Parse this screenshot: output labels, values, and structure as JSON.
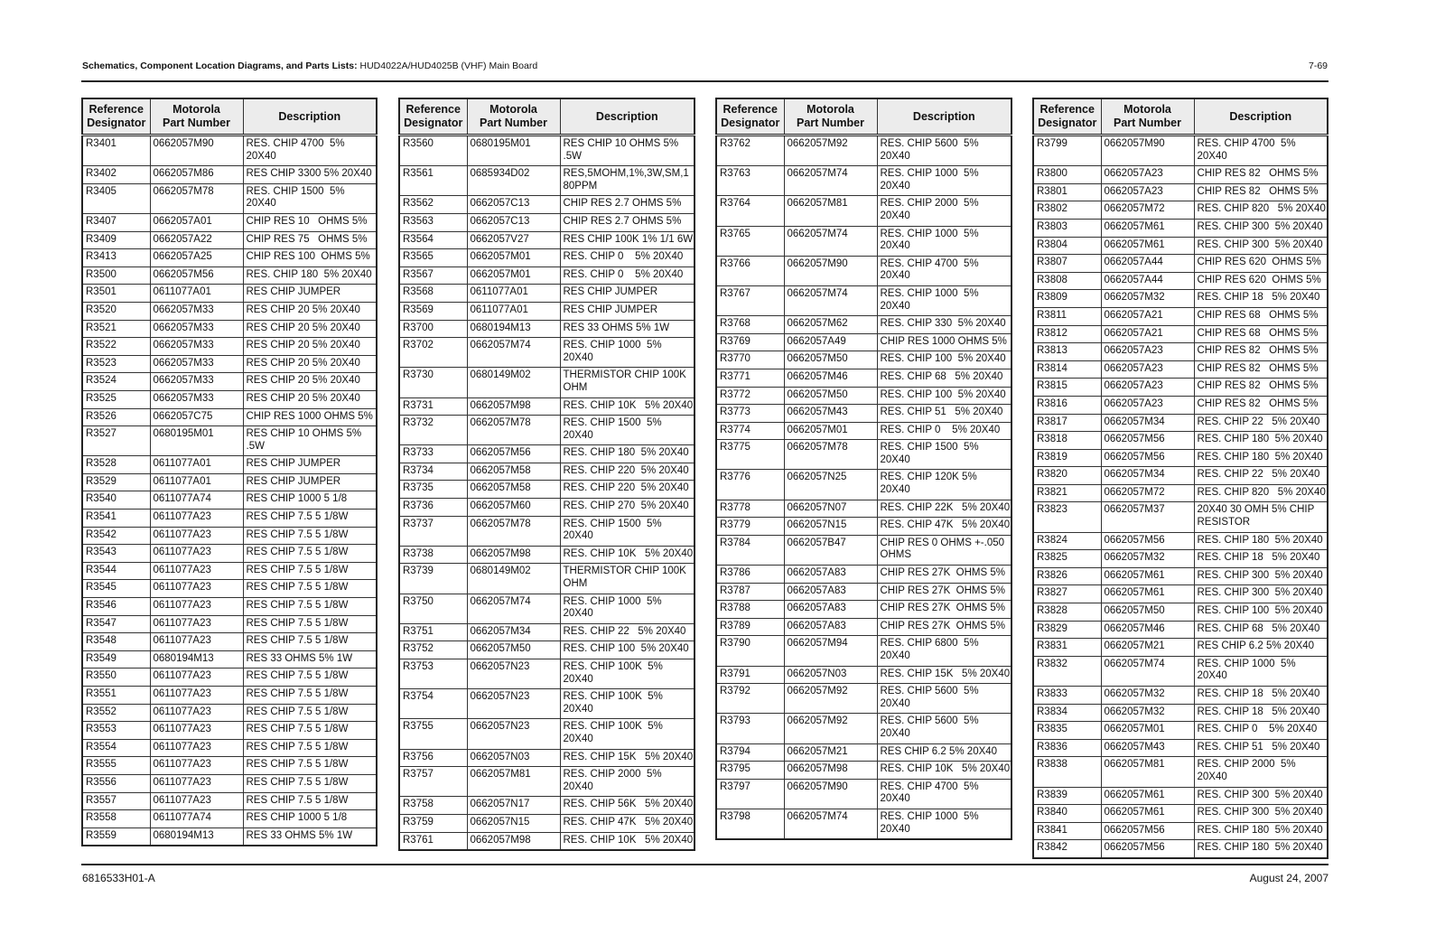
{
  "header": {
    "title_bold": "Schematics, Component Location Diagrams, and Parts Lists:",
    "title_rest": " HUD4022A/HUD4025B (VHF) Main Board",
    "page_number": "7-69"
  },
  "footer": {
    "doc_number": "6816533H01-A",
    "date": "August 24, 2007"
  },
  "columns": {
    "ref": "Reference\nDesignator",
    "part": "Motorola\nPart Number",
    "desc": "Description"
  },
  "tables": [
    {
      "rows": [
        {
          "ref": "R3401",
          "part": "0662057M90",
          "desc": "RES. CHIP 4700  5%\n20X40"
        },
        {
          "ref": "R3402",
          "part": "0662057M86",
          "desc": "RES CHIP 3300 5% 20X40"
        },
        {
          "ref": "R3405",
          "part": "0662057M78",
          "desc": "RES. CHIP 1500  5%\n20X40"
        },
        {
          "ref": "R3407",
          "part": "0662057A01",
          "desc": "CHIP RES 10   OHMS 5%"
        },
        {
          "ref": "R3409",
          "part": "0662057A22",
          "desc": "CHIP RES 75   OHMS 5%"
        },
        {
          "ref": "R3413",
          "part": "0662057A25",
          "desc": "CHIP RES 100  OHMS 5%"
        },
        {
          "ref": "R3500",
          "part": "0662057M56",
          "desc": "RES. CHIP 180  5% 20X40"
        },
        {
          "ref": "R3501",
          "part": "0611077A01",
          "desc": "RES CHIP JUMPER"
        },
        {
          "ref": "R3520",
          "part": "0662057M33",
          "desc": "RES CHIP 20 5% 20X40"
        },
        {
          "ref": "R3521",
          "part": "0662057M33",
          "desc": "RES CHIP 20 5% 20X40"
        },
        {
          "ref": "R3522",
          "part": "0662057M33",
          "desc": "RES CHIP 20 5% 20X40"
        },
        {
          "ref": "R3523",
          "part": "0662057M33",
          "desc": "RES CHIP 20 5% 20X40"
        },
        {
          "ref": "R3524",
          "part": "0662057M33",
          "desc": "RES CHIP 20 5% 20X40"
        },
        {
          "ref": "R3525",
          "part": "0662057M33",
          "desc": "RES CHIP 20 5% 20X40"
        },
        {
          "ref": "R3526",
          "part": "0662057C75",
          "desc": "CHIP RES 1000 OHMS 5%"
        },
        {
          "ref": "R3527",
          "part": "0680195M01",
          "desc": "RES CHIP 10 OHMS 5%\n.5W"
        },
        {
          "ref": "R3528",
          "part": "0611077A01",
          "desc": "RES CHIP JUMPER"
        },
        {
          "ref": "R3529",
          "part": "0611077A01",
          "desc": "RES CHIP JUMPER"
        },
        {
          "ref": "R3540",
          "part": "0611077A74",
          "desc": "RES CHIP 1000 5 1/8"
        },
        {
          "ref": "R3541",
          "part": "0611077A23",
          "desc": "RES CHIP 7.5 5 1/8W"
        },
        {
          "ref": "R3542",
          "part": "0611077A23",
          "desc": "RES CHIP 7.5 5 1/8W"
        },
        {
          "ref": "R3543",
          "part": "0611077A23",
          "desc": "RES CHIP 7.5 5 1/8W"
        },
        {
          "ref": "R3544",
          "part": "0611077A23",
          "desc": "RES CHIP 7.5 5 1/8W"
        },
        {
          "ref": "R3545",
          "part": "0611077A23",
          "desc": "RES CHIP 7.5 5 1/8W"
        },
        {
          "ref": "R3546",
          "part": "0611077A23",
          "desc": "RES CHIP 7.5 5 1/8W"
        },
        {
          "ref": "R3547",
          "part": "0611077A23",
          "desc": "RES CHIP 7.5 5 1/8W"
        },
        {
          "ref": "R3548",
          "part": "0611077A23",
          "desc": "RES CHIP 7.5 5 1/8W"
        },
        {
          "ref": "R3549",
          "part": "0680194M13",
          "desc": "RES 33 OHMS 5% 1W"
        },
        {
          "ref": "R3550",
          "part": "0611077A23",
          "desc": "RES CHIP 7.5 5 1/8W"
        },
        {
          "ref": "R3551",
          "part": "0611077A23",
          "desc": "RES CHIP 7.5 5 1/8W"
        },
        {
          "ref": "R3552",
          "part": "0611077A23",
          "desc": "RES CHIP 7.5 5 1/8W"
        },
        {
          "ref": "R3553",
          "part": "0611077A23",
          "desc": "RES CHIP 7.5 5 1/8W"
        },
        {
          "ref": "R3554",
          "part": "0611077A23",
          "desc": "RES CHIP 7.5 5 1/8W"
        },
        {
          "ref": "R3555",
          "part": "0611077A23",
          "desc": "RES CHIP 7.5 5 1/8W"
        },
        {
          "ref": "R3556",
          "part": "0611077A23",
          "desc": "RES CHIP 7.5 5 1/8W"
        },
        {
          "ref": "R3557",
          "part": "0611077A23",
          "desc": "RES CHIP 7.5 5 1/8W"
        },
        {
          "ref": "R3558",
          "part": "0611077A74",
          "desc": "RES CHIP 1000 5 1/8"
        },
        {
          "ref": "R3559",
          "part": "0680194M13",
          "desc": "RES 33 OHMS 5% 1W"
        }
      ]
    },
    {
      "rows": [
        {
          "ref": "R3560",
          "part": "0680195M01",
          "desc": "RES CHIP 10 OHMS 5%\n.5W"
        },
        {
          "ref": "R3561",
          "part": "0685934D02",
          "desc": "RES,5MOHM,1%,3W,SM,1\n80PPM"
        },
        {
          "ref": "R3562",
          "part": "0662057C13",
          "desc": "CHIP RES 2.7 OHMS 5%"
        },
        {
          "ref": "R3563",
          "part": "0662057C13",
          "desc": "CHIP RES 2.7 OHMS 5%"
        },
        {
          "ref": "R3564",
          "part": "0662057V27",
          "desc": "RES CHIP 100K 1% 1/1 6W"
        },
        {
          "ref": "R3565",
          "part": "0662057M01",
          "desc": "RES. CHIP 0    5% 20X40"
        },
        {
          "ref": "R3567",
          "part": "0662057M01",
          "desc": "RES. CHIP 0    5% 20X40"
        },
        {
          "ref": "R3568",
          "part": "0611077A01",
          "desc": "RES CHIP JUMPER"
        },
        {
          "ref": "R3569",
          "part": "0611077A01",
          "desc": "RES CHIP JUMPER"
        },
        {
          "ref": "R3700",
          "part": "0680194M13",
          "desc": "RES 33 OHMS 5% 1W"
        },
        {
          "ref": "R3702",
          "part": "0662057M74",
          "desc": "RES. CHIP 1000  5%\n20X40"
        },
        {
          "ref": "R3730",
          "part": "0680149M02",
          "desc": "THERMISTOR CHIP 100K\nOHM"
        },
        {
          "ref": "R3731",
          "part": "0662057M98",
          "desc": "RES. CHIP 10K   5% 20X40"
        },
        {
          "ref": "R3732",
          "part": "0662057M78",
          "desc": "RES. CHIP 1500  5%\n20X40"
        },
        {
          "ref": "R3733",
          "part": "0662057M56",
          "desc": "RES. CHIP 180  5% 20X40"
        },
        {
          "ref": "R3734",
          "part": "0662057M58",
          "desc": "RES. CHIP 220  5% 20X40"
        },
        {
          "ref": "R3735",
          "part": "0662057M58",
          "desc": "RES. CHIP 220  5% 20X40"
        },
        {
          "ref": "R3736",
          "part": "0662057M60",
          "desc": "RES. CHIP 270  5% 20X40"
        },
        {
          "ref": "R3737",
          "part": "0662057M78",
          "desc": "RES. CHIP 1500  5%\n20X40"
        },
        {
          "ref": "R3738",
          "part": "0662057M98",
          "desc": "RES. CHIP 10K   5% 20X40"
        },
        {
          "ref": "R3739",
          "part": "0680149M02",
          "desc": "THERMISTOR CHIP 100K\nOHM"
        },
        {
          "ref": "R3750",
          "part": "0662057M74",
          "desc": "RES. CHIP 1000  5%\n20X40"
        },
        {
          "ref": "R3751",
          "part": "0662057M34",
          "desc": "RES. CHIP 22   5% 20X40"
        },
        {
          "ref": "R3752",
          "part": "0662057M50",
          "desc": "RES. CHIP 100  5% 20X40"
        },
        {
          "ref": "R3753",
          "part": "0662057N23",
          "desc": "RES. CHIP 100K  5%\n20X40"
        },
        {
          "ref": "R3754",
          "part": "0662057N23",
          "desc": "RES. CHIP 100K  5%\n20X40"
        },
        {
          "ref": "R3755",
          "part": "0662057N23",
          "desc": "RES. CHIP 100K  5%\n20X40"
        },
        {
          "ref": "R3756",
          "part": "0662057N03",
          "desc": "RES. CHIP 15K   5% 20X40"
        },
        {
          "ref": "R3757",
          "part": "0662057M81",
          "desc": "RES. CHIP 2000  5%\n20X40"
        },
        {
          "ref": "R3758",
          "part": "0662057N17",
          "desc": "RES. CHIP 56K   5% 20X40"
        },
        {
          "ref": "R3759",
          "part": "0662057N15",
          "desc": "RES. CHIP 47K   5% 20X40"
        },
        {
          "ref": "R3761",
          "part": "0662057M98",
          "desc": "RES. CHIP 10K   5% 20X40"
        }
      ]
    },
    {
      "rows": [
        {
          "ref": "R3762",
          "part": "0662057M92",
          "desc": "RES. CHIP 5600  5%\n20X40"
        },
        {
          "ref": "R3763",
          "part": "0662057M74",
          "desc": "RES. CHIP 1000  5%\n20X40"
        },
        {
          "ref": "R3764",
          "part": "0662057M81",
          "desc": "RES. CHIP 2000  5%\n20X40"
        },
        {
          "ref": "R3765",
          "part": "0662057M74",
          "desc": "RES. CHIP 1000  5%\n20X40"
        },
        {
          "ref": "R3766",
          "part": "0662057M90",
          "desc": "RES. CHIP 4700  5%\n20X40"
        },
        {
          "ref": "R3767",
          "part": "0662057M74",
          "desc": "RES. CHIP 1000  5%\n20X40"
        },
        {
          "ref": "R3768",
          "part": "0662057M62",
          "desc": "RES. CHIP 330  5% 20X40"
        },
        {
          "ref": "R3769",
          "part": "0662057A49",
          "desc": "CHIP RES 1000 OHMS 5%"
        },
        {
          "ref": "R3770",
          "part": "0662057M50",
          "desc": "RES. CHIP 100  5% 20X40"
        },
        {
          "ref": "R3771",
          "part": "0662057M46",
          "desc": "RES. CHIP 68   5% 20X40"
        },
        {
          "ref": "R3772",
          "part": "0662057M50",
          "desc": "RES. CHIP 100  5% 20X40"
        },
        {
          "ref": "R3773",
          "part": "0662057M43",
          "desc": "RES. CHIP 51   5% 20X40"
        },
        {
          "ref": "R3774",
          "part": "0662057M01",
          "desc": "RES. CHIP 0    5% 20X40"
        },
        {
          "ref": "R3775",
          "part": "0662057M78",
          "desc": "RES. CHIP 1500  5%\n20X40"
        },
        {
          "ref": "R3776",
          "part": "0662057N25",
          "desc": "RES. CHIP 120K 5%\n20X40"
        },
        {
          "ref": "R3778",
          "part": "0662057N07",
          "desc": "RES. CHIP 22K   5% 20X40"
        },
        {
          "ref": "R3779",
          "part": "0662057N15",
          "desc": "RES. CHIP 47K   5% 20X40"
        },
        {
          "ref": "R3784",
          "part": "0662057B47",
          "desc": "CHIP RES 0 OHMS +-.050\nOHMS"
        },
        {
          "ref": "R3786",
          "part": "0662057A83",
          "desc": "CHIP RES 27K  OHMS 5%"
        },
        {
          "ref": "R3787",
          "part": "0662057A83",
          "desc": "CHIP RES 27K  OHMS 5%"
        },
        {
          "ref": "R3788",
          "part": "0662057A83",
          "desc": "CHIP RES 27K  OHMS 5%"
        },
        {
          "ref": "R3789",
          "part": "0662057A83",
          "desc": "CHIP RES 27K  OHMS 5%"
        },
        {
          "ref": "R3790",
          "part": "0662057M94",
          "desc": "RES. CHIP 6800  5%\n20X40"
        },
        {
          "ref": "R3791",
          "part": "0662057N03",
          "desc": "RES. CHIP 15K   5% 20X40"
        },
        {
          "ref": "R3792",
          "part": "0662057M92",
          "desc": "RES. CHIP 5600  5%\n20X40"
        },
        {
          "ref": "R3793",
          "part": "0662057M92",
          "desc": "RES. CHIP 5600  5%\n20X40"
        },
        {
          "ref": "R3794",
          "part": "0662057M21",
          "desc": "RES CHIP 6.2 5% 20X40"
        },
        {
          "ref": "R3795",
          "part": "0662057M98",
          "desc": "RES. CHIP 10K   5% 20X40"
        },
        {
          "ref": "R3797",
          "part": "0662057M90",
          "desc": "RES. CHIP 4700  5%\n20X40"
        },
        {
          "ref": "R3798",
          "part": "0662057M74",
          "desc": "RES. CHIP 1000  5%\n20X40"
        }
      ]
    },
    {
      "rows": [
        {
          "ref": "R3799",
          "part": "0662057M90",
          "desc": "RES. CHIP 4700  5%\n20X40"
        },
        {
          "ref": "R3800",
          "part": "0662057A23",
          "desc": "CHIP RES 82   OHMS 5%"
        },
        {
          "ref": "R3801",
          "part": "0662057A23",
          "desc": "CHIP RES 82   OHMS 5%"
        },
        {
          "ref": "R3802",
          "part": "0662057M72",
          "desc": "RES. CHIP 820   5% 20X40"
        },
        {
          "ref": "R3803",
          "part": "0662057M61",
          "desc": "RES. CHIP 300  5% 20X40"
        },
        {
          "ref": "R3804",
          "part": "0662057M61",
          "desc": "RES. CHIP 300  5% 20X40"
        },
        {
          "ref": "R3807",
          "part": "0662057A44",
          "desc": "CHIP RES 620  OHMS 5%"
        },
        {
          "ref": "R3808",
          "part": "0662057A44",
          "desc": "CHIP RES 620  OHMS 5%"
        },
        {
          "ref": "R3809",
          "part": "0662057M32",
          "desc": "RES. CHIP 18   5% 20X40"
        },
        {
          "ref": "R3811",
          "part": "0662057A21",
          "desc": "CHIP RES 68   OHMS 5%"
        },
        {
          "ref": "R3812",
          "part": "0662057A21",
          "desc": "CHIP RES 68   OHMS 5%"
        },
        {
          "ref": "R3813",
          "part": "0662057A23",
          "desc": "CHIP RES 82   OHMS 5%"
        },
        {
          "ref": "R3814",
          "part": "0662057A23",
          "desc": "CHIP RES 82   OHMS 5%"
        },
        {
          "ref": "R3815",
          "part": "0662057A23",
          "desc": "CHIP RES 82   OHMS 5%"
        },
        {
          "ref": "R3816",
          "part": "0662057A23",
          "desc": "CHIP RES 82   OHMS 5%"
        },
        {
          "ref": "R3817",
          "part": "0662057M34",
          "desc": "RES. CHIP 22   5% 20X40"
        },
        {
          "ref": "R3818",
          "part": "0662057M56",
          "desc": "RES. CHIP 180  5% 20X40"
        },
        {
          "ref": "R3819",
          "part": "0662057M56",
          "desc": "RES. CHIP 180  5% 20X40"
        },
        {
          "ref": "R3820",
          "part": "0662057M34",
          "desc": "RES. CHIP 22   5% 20X40"
        },
        {
          "ref": "R3821",
          "part": "0662057M72",
          "desc": "RES. CHIP 820   5% 20X40"
        },
        {
          "ref": "R3823",
          "part": "0662057M37",
          "desc": "20X40 30 OMH 5% CHIP\nRESISTOR"
        },
        {
          "ref": "R3824",
          "part": "0662057M56",
          "desc": "RES. CHIP 180  5% 20X40"
        },
        {
          "ref": "R3825",
          "part": "0662057M32",
          "desc": "RES. CHIP 18   5% 20X40"
        },
        {
          "ref": "R3826",
          "part": "0662057M61",
          "desc": "RES. CHIP 300  5% 20X40"
        },
        {
          "ref": "R3827",
          "part": "0662057M61",
          "desc": "RES. CHIP 300  5% 20X40"
        },
        {
          "ref": "R3828",
          "part": "0662057M50",
          "desc": "RES. CHIP 100  5% 20X40"
        },
        {
          "ref": "R3829",
          "part": "0662057M46",
          "desc": "RES. CHIP 68   5% 20X40"
        },
        {
          "ref": "R3831",
          "part": "0662057M21",
          "desc": "RES CHIP 6.2 5% 20X40"
        },
        {
          "ref": "R3832",
          "part": "0662057M74",
          "desc": "RES. CHIP 1000  5%\n20X40"
        },
        {
          "ref": "R3833",
          "part": "0662057M32",
          "desc": "RES. CHIP 18   5% 20X40"
        },
        {
          "ref": "R3834",
          "part": "0662057M32",
          "desc": "RES. CHIP 18   5% 20X40"
        },
        {
          "ref": "R3835",
          "part": "0662057M01",
          "desc": "RES. CHIP 0    5% 20X40"
        },
        {
          "ref": "R3836",
          "part": "0662057M43",
          "desc": "RES. CHIP 51   5% 20X40"
        },
        {
          "ref": "R3838",
          "part": "0662057M81",
          "desc": "RES. CHIP 2000  5%\n20X40"
        },
        {
          "ref": "R3839",
          "part": "0662057M61",
          "desc": "RES. CHIP 300  5% 20X40"
        },
        {
          "ref": "R3840",
          "part": "0662057M61",
          "desc": "RES. CHIP 300  5% 20X40"
        },
        {
          "ref": "R3841",
          "part": "0662057M56",
          "desc": "RES. CHIP 180  5% 20X40"
        },
        {
          "ref": "R3842",
          "part": "0662057M56",
          "desc": "RES. CHIP 180  5% 20X40"
        }
      ]
    }
  ]
}
